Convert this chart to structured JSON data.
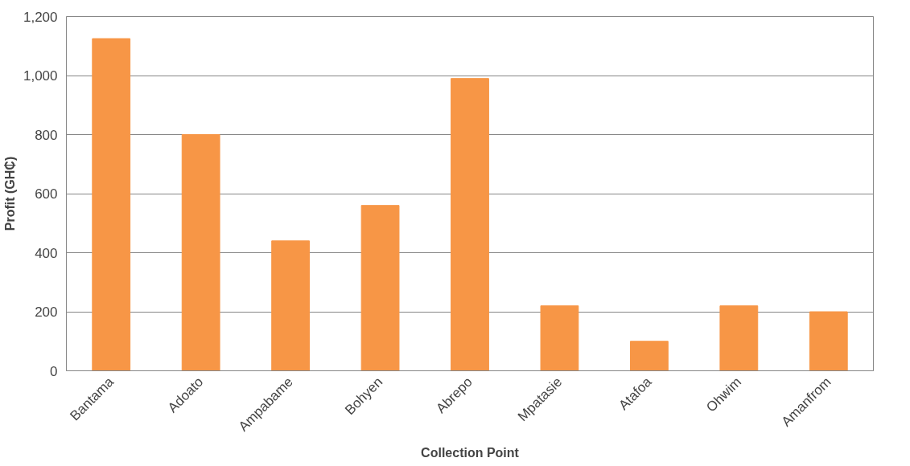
{
  "chart_data": {
    "type": "bar",
    "xlabel": "Collection Point",
    "ylabel": "Profit (GH₵)",
    "categories": [
      "Bantama",
      "Adoato",
      "Ampabame",
      "Bohyen",
      "Abrepo",
      "Mpatasie",
      "Atafoa",
      "Ohwim",
      "Amanfrom"
    ],
    "values": [
      1125,
      800,
      440,
      560,
      990,
      220,
      100,
      220,
      200
    ],
    "color": "#f79646",
    "ylim": [
      0,
      1200
    ],
    "yticks": [
      0,
      {
        "value": 200,
        "label": "200"
      },
      {
        "value": 400,
        "label": "400"
      },
      {
        "value": 600,
        "label": "600"
      },
      {
        "value": 800,
        "label": "800"
      },
      {
        "value": 1000,
        "label": "1,000"
      },
      {
        "value": 1200,
        "label": "1,200"
      }
    ],
    "grid": "y"
  }
}
